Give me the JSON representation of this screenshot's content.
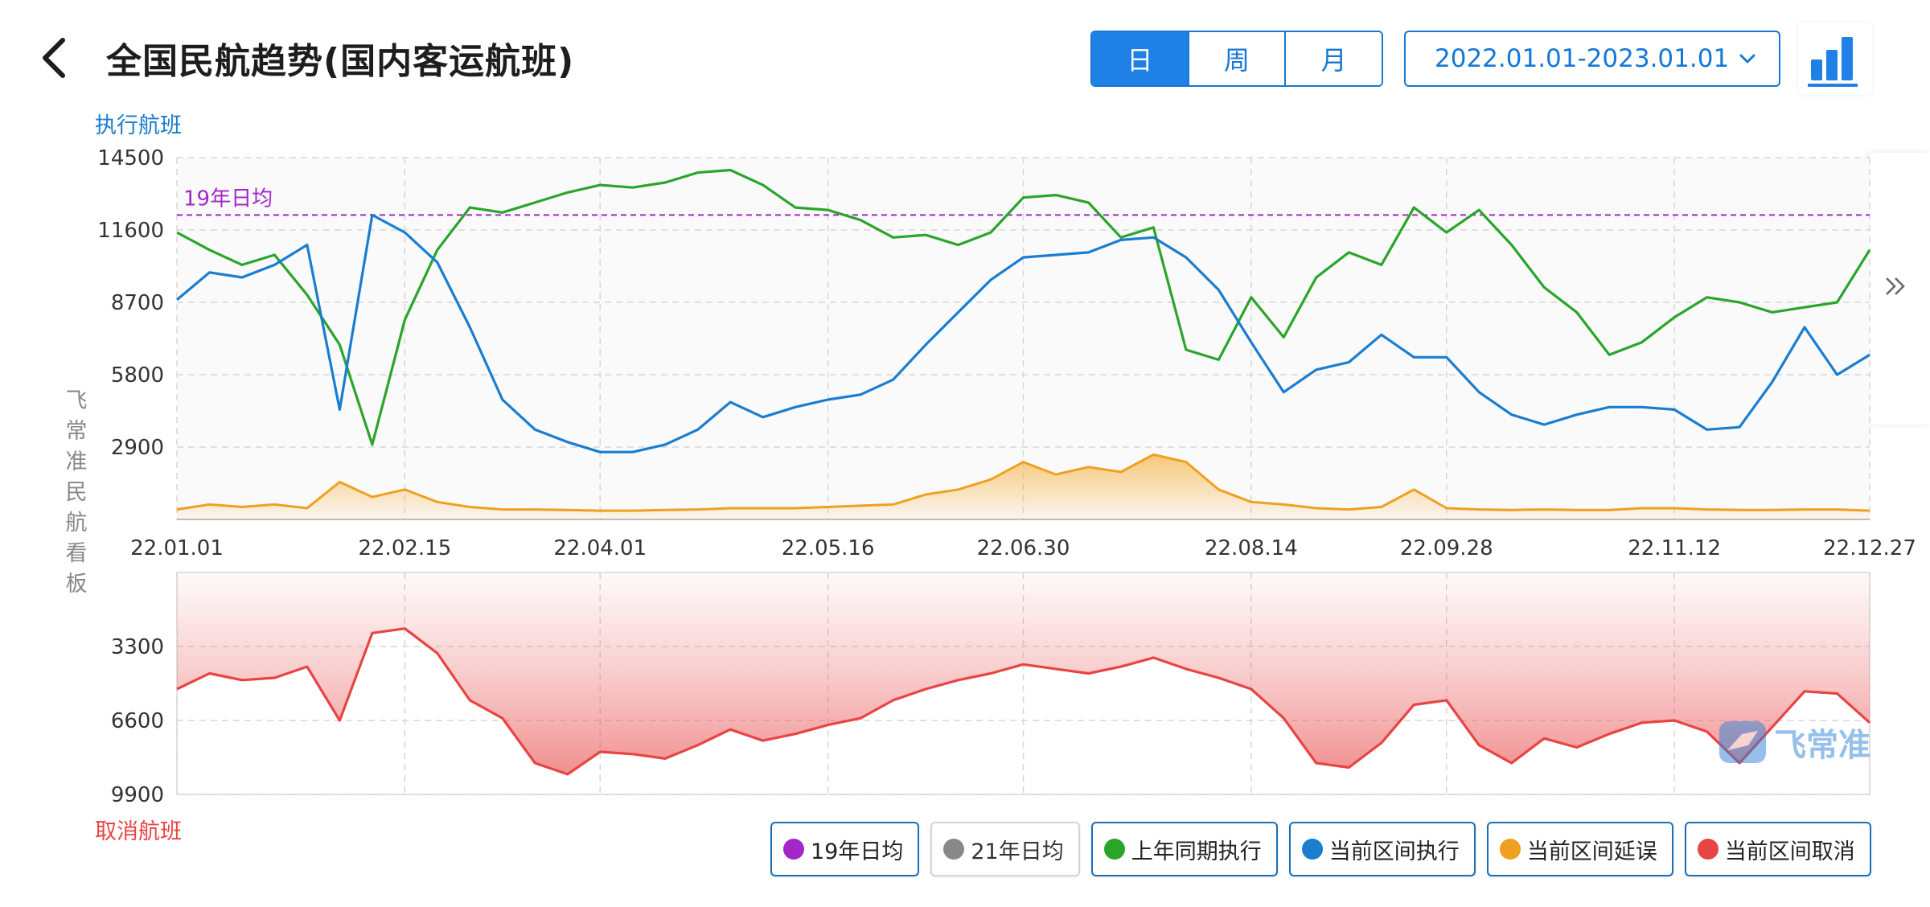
{
  "header": {
    "title": "全国民航趋势(国内客运航班)",
    "tabs": [
      {
        "label": "日",
        "active": true
      },
      {
        "label": "周",
        "active": false
      },
      {
        "label": "月",
        "active": false
      }
    ],
    "date_range": "2022.01.01-2023.01.01",
    "back_icon": "chevron-left-icon",
    "chart_toggle_icon": "bar-chart-icon"
  },
  "side_panel_icon": "double-chevron-right-icon",
  "vertical_label": "飞常准民航看板",
  "watermark": "飞常准",
  "colors": {
    "avg19": "#a326c9",
    "avg21": "#888888",
    "last_year": "#2aa52a",
    "current": "#1a7dd0",
    "delay": "#f0a020",
    "cancel": "#e84444"
  },
  "chart_data": [
    {
      "type": "line",
      "ylabel": "执行航班",
      "yticks": [
        2900,
        5800,
        8700,
        11600,
        14500
      ],
      "ylim": [
        0,
        14500
      ],
      "x_tick_labels": [
        "22.01.01",
        "22.02.15",
        "22.04.01",
        "22.05.16",
        "22.06.30",
        "22.08.14",
        "22.09.28",
        "22.11.12",
        "22.12.27"
      ],
      "x": [
        "22.01.01",
        "22.01.08",
        "22.01.15",
        "22.01.22",
        "22.01.29",
        "22.02.05",
        "22.02.12",
        "22.02.19",
        "22.02.26",
        "22.03.05",
        "22.03.12",
        "22.03.19",
        "22.03.26",
        "22.04.02",
        "22.04.09",
        "22.04.16",
        "22.04.23",
        "22.04.30",
        "22.05.07",
        "22.05.14",
        "22.05.21",
        "22.05.28",
        "22.06.04",
        "22.06.11",
        "22.06.18",
        "22.06.25",
        "22.07.02",
        "22.07.09",
        "22.07.16",
        "22.07.23",
        "22.07.30",
        "22.08.06",
        "22.08.13",
        "22.08.20",
        "22.08.27",
        "22.09.03",
        "22.09.10",
        "22.09.17",
        "22.09.24",
        "22.10.01",
        "22.10.08",
        "22.10.15",
        "22.10.22",
        "22.10.29",
        "22.11.05",
        "22.11.12",
        "22.11.19",
        "22.11.26",
        "22.12.03",
        "22.12.10",
        "22.12.17",
        "22.12.24",
        "22.12.31"
      ],
      "reference_line": {
        "name": "19年日均",
        "value": 12200
      },
      "series": [
        {
          "name": "上年同期执行",
          "values": [
            11500,
            10800,
            10200,
            10600,
            9000,
            7000,
            3000,
            8000,
            10800,
            12500,
            12300,
            12700,
            13100,
            13400,
            13300,
            13500,
            13900,
            14000,
            13400,
            12500,
            12400,
            12000,
            11300,
            11400,
            11000,
            11500,
            12900,
            13000,
            12700,
            11300,
            11700,
            6800,
            6400,
            8900,
            7300,
            9700,
            10700,
            10200,
            12500,
            11500,
            12400,
            11000,
            9300,
            8300,
            6600,
            7100,
            8100,
            8900,
            8700,
            8300,
            8500,
            8700,
            10800
          ]
        },
        {
          "name": "当前区间执行",
          "values": [
            8800,
            9900,
            9700,
            10200,
            11000,
            4400,
            12200,
            11500,
            10300,
            7700,
            4800,
            3600,
            3100,
            2700,
            2700,
            3000,
            3600,
            4700,
            4100,
            4500,
            4800,
            5000,
            5600,
            7000,
            8300,
            9600,
            10500,
            10600,
            10700,
            11200,
            11300,
            10500,
            9200,
            7100,
            5100,
            6000,
            6300,
            7400,
            6500,
            6500,
            5100,
            4200,
            3800,
            4200,
            4500,
            4500,
            4400,
            3600,
            3700,
            5500,
            7700,
            5800,
            6600
          ]
        },
        {
          "name": "当前区间延误",
          "values": [
            400,
            600,
            500,
            600,
            450,
            1500,
            900,
            1200,
            700,
            500,
            400,
            400,
            380,
            350,
            350,
            380,
            400,
            450,
            450,
            450,
            500,
            550,
            600,
            1000,
            1200,
            1600,
            2300,
            1800,
            2100,
            1900,
            2600,
            2300,
            1200,
            700,
            600,
            450,
            400,
            500,
            1200,
            450,
            400,
            380,
            400,
            380,
            380,
            450,
            450,
            400,
            380,
            380,
            400,
            400,
            350
          ]
        }
      ]
    },
    {
      "type": "area",
      "ylabel": "取消航班",
      "yticks": [
        3300,
        6600,
        9900
      ],
      "ylim": [
        0,
        9900
      ],
      "inverted": true,
      "series": [
        {
          "name": "当前区间取消",
          "values": [
            5200,
            4500,
            4800,
            4700,
            4200,
            6600,
            2700,
            2500,
            3600,
            5700,
            6500,
            8500,
            9000,
            8000,
            8100,
            8300,
            7700,
            7000,
            7500,
            7200,
            6800,
            6500,
            5700,
            5200,
            4800,
            4500,
            4100,
            4300,
            4500,
            4200,
            3800,
            4300,
            4700,
            5200,
            6500,
            8500,
            8700,
            7600,
            5900,
            5700,
            7700,
            8500,
            7400,
            7800,
            7200,
            6700,
            6600,
            7100,
            8500,
            6900,
            5300,
            5400,
            6700
          ]
        }
      ]
    }
  ],
  "legend": [
    {
      "label": "19年日均",
      "color": "#a326c9",
      "active": true
    },
    {
      "label": "21年日均",
      "color": "#888888",
      "active": false
    },
    {
      "label": "上年同期执行",
      "color": "#2aa52a",
      "active": true
    },
    {
      "label": "当前区间执行",
      "color": "#1a7dd0",
      "active": true
    },
    {
      "label": "当前区间延误",
      "color": "#f0a020",
      "active": true
    },
    {
      "label": "当前区间取消",
      "color": "#e84444",
      "active": true
    }
  ]
}
